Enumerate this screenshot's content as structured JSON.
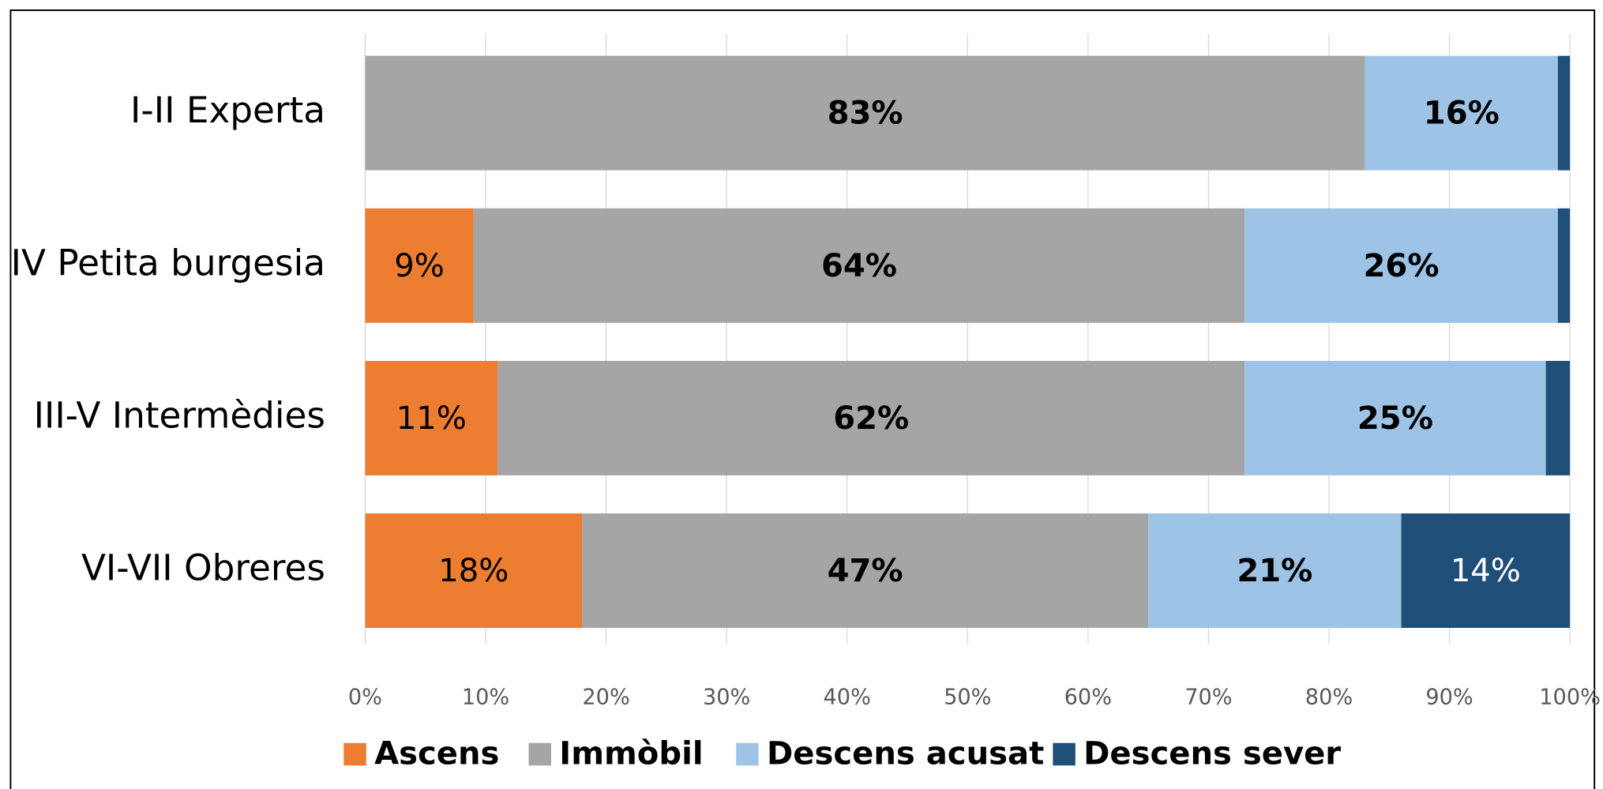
{
  "chart_data": {
    "type": "stacked_bar_horizontal",
    "categories": [
      "I-II Experta",
      "IV Petita burgesia",
      "III-V Intermèdies",
      "VI-VII Obreres"
    ],
    "series": [
      {
        "name": "Ascens",
        "color": "#ed7d31",
        "label_color": "#000000",
        "label_bold": false,
        "values": [
          0,
          9,
          11,
          18
        ],
        "value_labels": [
          null,
          "9%",
          "11%",
          "18%"
        ]
      },
      {
        "name": "Immòbil",
        "color": "#a5a5a5",
        "label_color": "#000000",
        "label_bold": true,
        "values": [
          83,
          64,
          62,
          47
        ],
        "value_labels": [
          "83%",
          "64%",
          "62%",
          "47%"
        ]
      },
      {
        "name": "Descens acusat",
        "color": "#9dc3e6",
        "label_color": "#000000",
        "label_bold": true,
        "values": [
          16,
          26,
          25,
          21
        ],
        "value_labels": [
          "16%",
          "26%",
          "25%",
          "21%"
        ]
      },
      {
        "name": "Descens sever",
        "color": "#1f4e79",
        "label_color": "#ffffff",
        "label_bold": false,
        "values": [
          1,
          1,
          2,
          14
        ],
        "value_labels": [
          null,
          null,
          null,
          "14%"
        ]
      }
    ],
    "xlim": [
      0,
      100
    ],
    "xticks": [
      {
        "value": 0,
        "label": "0%"
      },
      {
        "value": 10,
        "label": "10%"
      },
      {
        "value": 20,
        "label": "20%"
      },
      {
        "value": 30,
        "label": "30%"
      },
      {
        "value": 40,
        "label": "40%"
      },
      {
        "value": 50,
        "label": "50%"
      },
      {
        "value": 60,
        "label": "60%"
      },
      {
        "value": 70,
        "label": "70%"
      },
      {
        "value": 80,
        "label": "80%"
      },
      {
        "value": 90,
        "label": "90%"
      },
      {
        "value": 100,
        "label": "100%"
      }
    ],
    "grid": true,
    "legend": "bottom"
  }
}
